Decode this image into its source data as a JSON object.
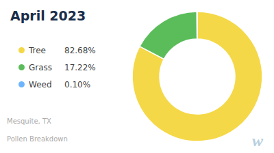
{
  "chart_data": {
    "type": "pie",
    "title": "April 2023",
    "annotations": [
      "Mesquite, TX",
      "Pollen Breakdown",
      "w"
    ],
    "categories": [
      "Tree",
      "Grass",
      "Weed"
    ],
    "values": [
      82.68,
      17.22,
      0.1
    ],
    "value_labels": [
      "82.68%",
      "17.22%",
      "0.10%"
    ],
    "colors": [
      "#F5D847",
      "#5BBD5A",
      "#6EB5FF"
    ],
    "legend": "left"
  }
}
